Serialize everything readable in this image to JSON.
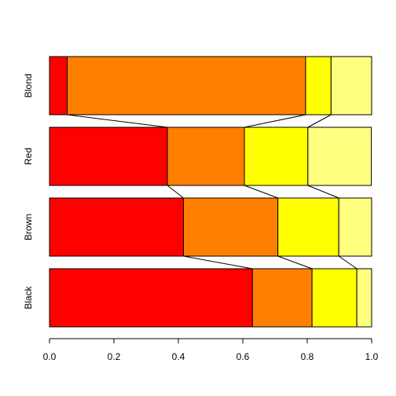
{
  "chart_data": {
    "type": "bar",
    "orientation": "horizontal",
    "stacked": "proportional",
    "categories": [
      "Black",
      "Brown",
      "Red",
      "Blond"
    ],
    "series": [
      {
        "color": "#ff0000",
        "values": [
          0.63,
          0.416,
          0.366,
          0.055
        ]
      },
      {
        "color": "#ff8000",
        "values": [
          0.185,
          0.293,
          0.239,
          0.74
        ]
      },
      {
        "color": "#ffff00",
        "values": [
          0.139,
          0.189,
          0.197,
          0.079
        ]
      },
      {
        "color": "#ffff80",
        "values": [
          0.046,
          0.102,
          0.197,
          0.126
        ]
      }
    ],
    "xlim": [
      0,
      1
    ],
    "x_ticks": [
      "0.0",
      "0.2",
      "0.4",
      "0.6",
      "0.8",
      "1.0"
    ],
    "title": "",
    "xlabel": "",
    "ylabel": "",
    "grid": false,
    "legend": "none",
    "connector_lines": true
  }
}
